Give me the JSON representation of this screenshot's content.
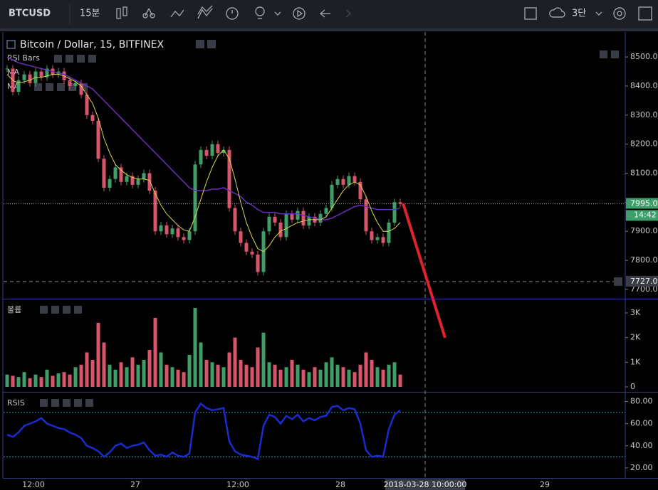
{
  "toolbar": {
    "symbol": "BTCUSD",
    "interval": "15분",
    "layout": "3단"
  },
  "chart_data": {
    "type": "candlestick",
    "title": "Bitcoin / Dollar, 15, BITFINEX",
    "indicators": [
      "RSI Bars",
      "MA",
      "MA"
    ],
    "closes": [
      8460,
      8380,
      8420,
      8440,
      8410,
      8450,
      8430,
      8460,
      8440,
      8450,
      8420,
      8400,
      8410,
      8370,
      8300,
      8280,
      8150,
      8050,
      8080,
      8120,
      8070,
      8090,
      8060,
      8080,
      8100,
      8040,
      7900,
      7920,
      7890,
      7910,
      7880,
      7870,
      7900,
      8130,
      8180,
      8160,
      8200,
      8170,
      8180,
      7980,
      7900,
      7860,
      7830,
      7820,
      7760,
      7900,
      7950,
      7930,
      7880,
      7960,
      7940,
      7970,
      7920,
      7950,
      7930,
      7960,
      7980,
      8060,
      8080,
      8060,
      8090,
      8070,
      8010,
      7900,
      7870,
      7880,
      7860,
      7930,
      8000,
      7995
    ],
    "ma_fast": [
      8440,
      8420,
      8410,
      8415,
      8420,
      8430,
      8430,
      8435,
      8440,
      8440,
      8435,
      8425,
      8415,
      8400,
      8370,
      8340,
      8290,
      8220,
      8170,
      8130,
      8110,
      8095,
      8085,
      8080,
      8080,
      8075,
      8030,
      7990,
      7960,
      7940,
      7920,
      7905,
      7900,
      7950,
      8010,
      8070,
      8120,
      8160,
      8180,
      8150,
      8080,
      8000,
      7930,
      7880,
      7840,
      7830,
      7850,
      7880,
      7900,
      7910,
      7920,
      7930,
      7935,
      7940,
      7940,
      7940,
      7950,
      7980,
      8010,
      8040,
      8060,
      8070,
      8060,
      8020,
      7970,
      7930,
      7900,
      7900,
      7910,
      7930
    ],
    "ma_slow": [
      8500,
      8490,
      8480,
      8475,
      8470,
      8465,
      8460,
      8455,
      8450,
      8445,
      8440,
      8430,
      8420,
      8410,
      8400,
      8390,
      8370,
      8350,
      8330,
      8310,
      8290,
      8270,
      8250,
      8230,
      8210,
      8190,
      8170,
      8150,
      8130,
      8110,
      8090,
      8070,
      8050,
      8040,
      8040,
      8040,
      8045,
      8045,
      8050,
      8040,
      8030,
      8020,
      8000,
      7990,
      7975,
      7965,
      7965,
      7965,
      7960,
      7960,
      7960,
      7960,
      7955,
      7950,
      7945,
      7940,
      7940,
      7945,
      7955,
      7965,
      7975,
      7985,
      7990,
      7985,
      7980,
      7975,
      7975,
      7975,
      7975,
      7980
    ],
    "colors": {
      "up": "#3f9e6a",
      "down": "#d9546d",
      "ma_fast": "#d8d84a",
      "ma_slow": "#6a2fb8"
    },
    "ylim": [
      7668,
      8586
    ],
    "yticks": [
      {
        "value": 7700,
        "label": "7700.0"
      },
      {
        "value": 7800,
        "label": "7800.0"
      },
      {
        "value": 7900,
        "label": "7900.0"
      },
      {
        "value": 8000,
        "label": "8000.0"
      },
      {
        "value": 8100,
        "label": "8100.0"
      },
      {
        "value": 8200,
        "label": "8200.0"
      },
      {
        "value": 8300,
        "label": "8300.0"
      },
      {
        "value": 8400,
        "label": "8400.0"
      },
      {
        "value": 8500,
        "label": "8500.0"
      }
    ],
    "last_price": {
      "value": 7995,
      "label": "7995.0"
    },
    "countdown": "14:42",
    "crosshair_price": {
      "value": 7727,
      "label": "7727.0"
    },
    "x_labels": [
      "12:00",
      "27",
      "12:00",
      "28",
      "29"
    ],
    "crosshair_time": "2018-03-28 10:00:00"
  },
  "volume": {
    "title": "볼륨",
    "values": [
      500,
      450,
      400,
      600,
      350,
      500,
      400,
      700,
      450,
      550,
      600,
      500,
      800,
      900,
      1400,
      1100,
      2600,
      1800,
      900,
      700,
      1000,
      800,
      1200,
      900,
      1100,
      1500,
      2800,
      1400,
      900,
      800,
      700,
      600,
      1300,
      3200,
      1800,
      1100,
      1000,
      900,
      800,
      1400,
      2000,
      1100,
      900,
      800,
      1600,
      2200,
      1000,
      900,
      700,
      800,
      1100,
      900,
      700,
      600,
      800,
      700,
      1000,
      1200,
      900,
      800,
      700,
      600,
      900,
      1400,
      1100,
      800,
      700,
      900,
      1000,
      500
    ],
    "ylim": [
      -173,
      3519
    ],
    "yticks": [
      0,
      {
        "value": 1000,
        "label": "1K"
      },
      {
        "value": 2000,
        "label": "2K"
      },
      {
        "value": 3000,
        "label": "3K"
      }
    ]
  },
  "rsi": {
    "title": "RSIS",
    "color": "#1a2bd0",
    "values": [
      50,
      48,
      52,
      58,
      60,
      62,
      65,
      60,
      58,
      56,
      55,
      52,
      50,
      47,
      40,
      38,
      35,
      30,
      34,
      40,
      42,
      38,
      40,
      41,
      43,
      36,
      31,
      32,
      30,
      34,
      31,
      30,
      33,
      70,
      78,
      74,
      72,
      73,
      74,
      44,
      35,
      32,
      31,
      30,
      28,
      58,
      68,
      66,
      60,
      67,
      64,
      68,
      62,
      65,
      63,
      66,
      67,
      75,
      76,
      72,
      74,
      73,
      60,
      36,
      30,
      31,
      30,
      55,
      68,
      72
    ],
    "ylim": [
      11,
      88
    ],
    "yticks": [
      {
        "value": 20,
        "label": "20.00"
      },
      {
        "value": 40,
        "label": "40.00"
      },
      {
        "value": 60,
        "label": "60.00"
      },
      {
        "value": 80,
        "label": "80.00"
      }
    ],
    "bands": [
      30,
      70
    ]
  }
}
